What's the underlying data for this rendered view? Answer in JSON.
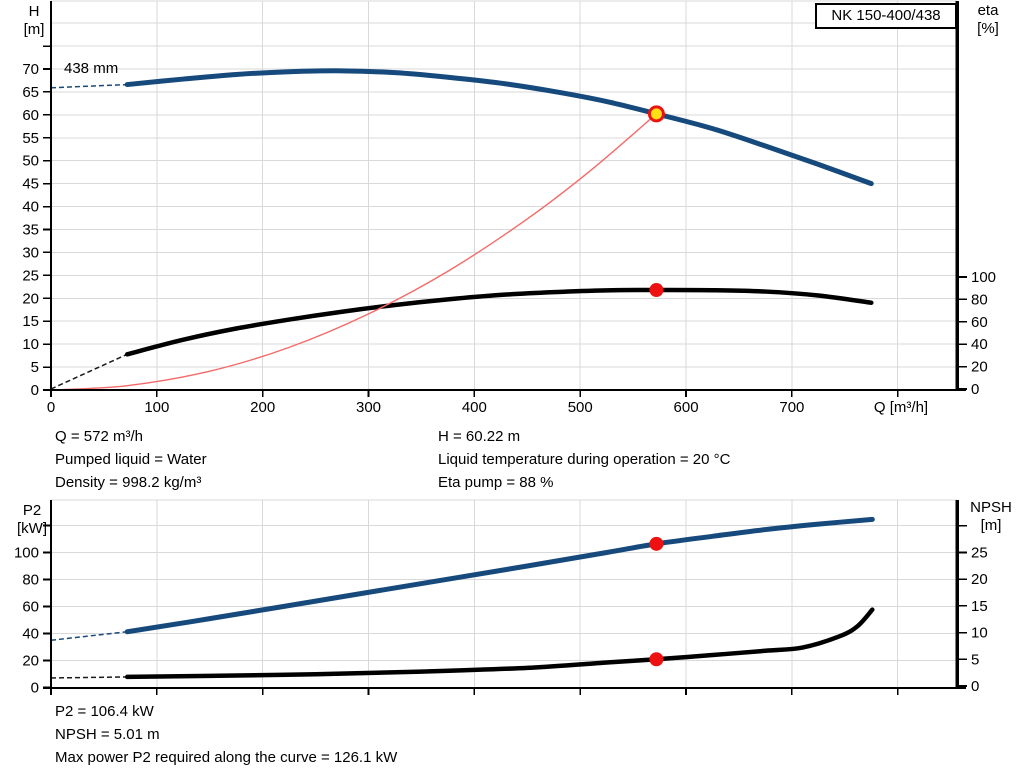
{
  "model_box": {
    "label": "NK 150-400/438"
  },
  "info_top": {
    "left": [
      "Q = 572 m³/h",
      "Pumped liquid = Water",
      "Density = 998.2 kg/m³"
    ],
    "right": [
      "H = 60.22 m",
      "Liquid temperature during operation = 20 °C",
      "Eta pump = 88 %"
    ]
  },
  "info_bottom": [
    "P2 = 106.4 kW",
    "NPSH = 5.01 m",
    "Max power P2 required along the curve = 126.1 kW"
  ],
  "colors": {
    "curve_blue": "#174a7c",
    "curve_black": "#000000",
    "system_red": "#f46a6a",
    "marker_red": "#ee1111",
    "marker_yellow": "#ffe014",
    "grid": "#d9d9d9",
    "axis": "#000000"
  },
  "chart_data": [
    {
      "type": "line",
      "name": "qh-eta-chart",
      "impeller_label": "438 mm",
      "x": {
        "label": "Q [m³/h]",
        "min": 0,
        "max": 856,
        "ticks": [
          0,
          100,
          200,
          300,
          400,
          500,
          600,
          700,
          800
        ],
        "tick_labels": [
          "0",
          "100",
          "200",
          "300",
          "400",
          "500",
          "600",
          "700"
        ]
      },
      "left": {
        "title": [
          "H",
          "[m]"
        ],
        "min": 0,
        "max": 84.8,
        "ticks": [
          0,
          5,
          10,
          15,
          20,
          25,
          30,
          35,
          40,
          45,
          50,
          55,
          60,
          65,
          70
        ],
        "extra_ticks": [
          75
        ],
        "grid_step": 5,
        "grid_max": 80
      },
      "right": {
        "title": [
          "eta",
          "[%]"
        ],
        "min": 0,
        "max": 100,
        "ticks": [
          0,
          20,
          40,
          60,
          80,
          100
        ],
        "extra_ticks": []
      },
      "series": [
        {
          "name": "efficiency-curve",
          "axis": "right",
          "color": "#000000",
          "width": 4.5,
          "dash_lead": [
            [
              0,
              0
            ],
            [
              72,
              31
            ]
          ],
          "points": [
            [
              72,
              31
            ],
            [
              125,
              44
            ],
            [
              175,
              54
            ],
            [
              225,
              62
            ],
            [
              275,
              69
            ],
            [
              325,
              75
            ],
            [
              375,
              80
            ],
            [
              425,
              84
            ],
            [
              475,
              86.5
            ],
            [
              525,
              88.1
            ],
            [
              572,
              88.4
            ],
            [
              625,
              88.2
            ],
            [
              675,
              87
            ],
            [
              725,
              83.5
            ],
            [
              775,
              77
            ]
          ]
        },
        {
          "name": "system-curve",
          "axis": "left",
          "color": "#f46a6a",
          "width": 1.4,
          "points": [
            [
              0,
              0
            ],
            [
              72,
              0.95
            ],
            [
              150,
              4.1
            ],
            [
              225,
              9.3
            ],
            [
              300,
              16.6
            ],
            [
              375,
              25.9
            ],
            [
              450,
              37.3
            ],
            [
              510,
              47.9
            ],
            [
              572,
              60.22
            ]
          ]
        },
        {
          "name": "head-curve",
          "axis": "left",
          "color": "#174a7c",
          "width": 5,
          "dash_lead": [
            [
              0,
              65.9
            ],
            [
              72,
              66.6
            ]
          ],
          "points": [
            [
              72,
              66.6
            ],
            [
              125,
              67.8
            ],
            [
              175,
              68.8
            ],
            [
              225,
              69.4
            ],
            [
              275,
              69.6
            ],
            [
              325,
              69.2
            ],
            [
              375,
              68.2
            ],
            [
              425,
              66.9
            ],
            [
              475,
              65.1
            ],
            [
              525,
              62.9
            ],
            [
              572,
              60.22
            ],
            [
              625,
              57.0
            ],
            [
              675,
              53.2
            ],
            [
              725,
              49.2
            ],
            [
              775,
              45.0
            ]
          ]
        }
      ],
      "markers": [
        {
          "name": "duty-point-head",
          "x": 572,
          "y": 60.22,
          "axis": "left",
          "fill": "#ffe014",
          "stroke": "#ee1111",
          "stroke_width": 3,
          "r": 7
        },
        {
          "name": "duty-point-eta",
          "x": 572,
          "y": 88.4,
          "axis": "right",
          "fill": "#ee1111",
          "stroke": "none",
          "stroke_width": 0,
          "r": 7
        }
      ]
    },
    {
      "type": "line",
      "name": "p2-npsh-chart",
      "x": {
        "label": "",
        "min": 0,
        "max": 856,
        "ticks": [
          0,
          100,
          200,
          300,
          400,
          500,
          600,
          700,
          800
        ],
        "tick_labels": []
      },
      "left": {
        "title": [
          "P2",
          "[kW]"
        ],
        "min": 0,
        "max": 138,
        "ticks": [
          0,
          20,
          40,
          60,
          80,
          100
        ],
        "extra_ticks": [
          120
        ],
        "grid_step": 20,
        "grid_max": 120
      },
      "right": {
        "title": [
          "NPSH",
          "[m]"
        ],
        "min": 0,
        "max": 30,
        "ticks": [
          0,
          5,
          10,
          15,
          20,
          25
        ],
        "extra_ticks": [
          30
        ]
      },
      "series": [
        {
          "name": "npsh-curve",
          "axis": "right",
          "color": "#000000",
          "width": 4.5,
          "dash_lead": [
            [
              0,
              1.5
            ],
            [
              72,
              1.7
            ]
          ],
          "points": [
            [
              72,
              1.7
            ],
            [
              150,
              1.9
            ],
            [
              250,
              2.2
            ],
            [
              350,
              2.7
            ],
            [
              450,
              3.4
            ],
            [
              525,
              4.4
            ],
            [
              572,
              5.01
            ],
            [
              625,
              5.8
            ],
            [
              675,
              6.6
            ],
            [
              710,
              7.2
            ],
            [
              745,
              9.3
            ],
            [
              762,
              11.2
            ],
            [
              776,
              14.3
            ]
          ]
        },
        {
          "name": "p2-curve",
          "axis": "left",
          "color": "#174a7c",
          "width": 5,
          "dash_lead": [
            [
              0,
              35
            ],
            [
              72,
              41.3
            ]
          ],
          "points": [
            [
              72,
              41.3
            ],
            [
              150,
              51
            ],
            [
              250,
              64
            ],
            [
              350,
              77
            ],
            [
              450,
              90
            ],
            [
              525,
              100
            ],
            [
              572,
              106.4
            ],
            [
              625,
              112
            ],
            [
              675,
              117
            ],
            [
              725,
              121
            ],
            [
              776,
              124.5
            ]
          ]
        }
      ],
      "markers": [
        {
          "name": "duty-point-p2",
          "x": 572,
          "y": 106.4,
          "axis": "left",
          "fill": "#ee1111",
          "stroke": "none",
          "stroke_width": 0,
          "r": 7
        },
        {
          "name": "duty-point-npsh",
          "x": 572,
          "y": 5.01,
          "axis": "right",
          "fill": "#ee1111",
          "stroke": "none",
          "stroke_width": 0,
          "r": 7
        }
      ]
    }
  ]
}
